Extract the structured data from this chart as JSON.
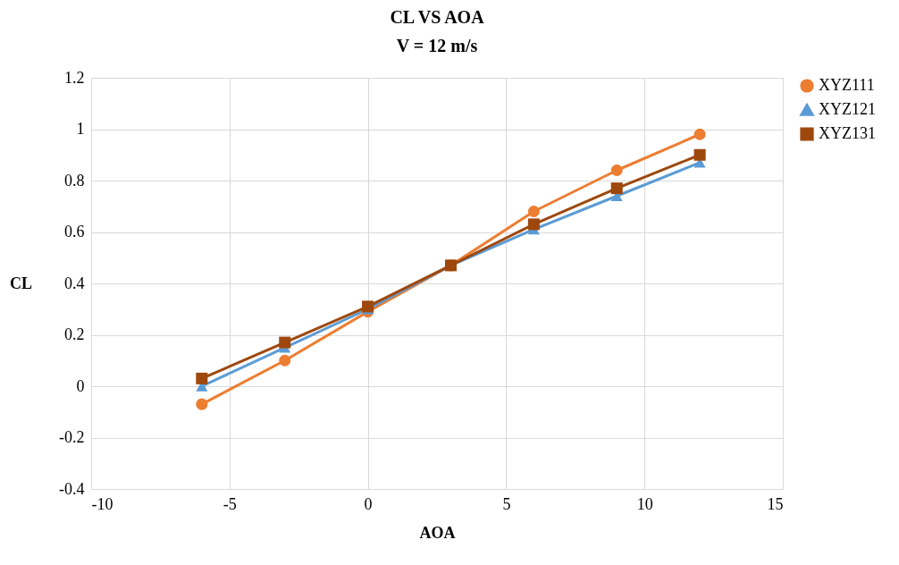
{
  "chart_data": {
    "type": "line",
    "title": "CL VS AOA",
    "subtitle": "V = 12 m/s",
    "xlabel": "AOA",
    "ylabel": "CL",
    "x": [
      -6,
      -3,
      0,
      3,
      6,
      9,
      12
    ],
    "series": [
      {
        "name": "XYZ111",
        "color": "#ed7d31",
        "marker": "circle",
        "values": [
          -0.07,
          0.1,
          0.29,
          0.47,
          0.68,
          0.84,
          0.98
        ]
      },
      {
        "name": "XYZ121",
        "color": "#5b9bd5",
        "marker": "triangle",
        "values": [
          0.0,
          0.15,
          0.3,
          0.47,
          0.61,
          0.74,
          0.87
        ]
      },
      {
        "name": "XYZ131",
        "color": "#9e480e",
        "marker": "square",
        "values": [
          0.03,
          0.17,
          0.31,
          0.47,
          0.63,
          0.77,
          0.9
        ]
      }
    ],
    "xlim": [
      -10,
      15
    ],
    "xticks": [
      -10,
      -5,
      0,
      5,
      10,
      15
    ],
    "ylim": [
      -0.4,
      1.2
    ],
    "yticks": [
      -0.4,
      -0.2,
      0,
      0.2,
      0.4,
      0.6,
      0.8,
      1,
      1.2
    ],
    "grid": true,
    "legend": "right",
    "line_style": "solid"
  }
}
